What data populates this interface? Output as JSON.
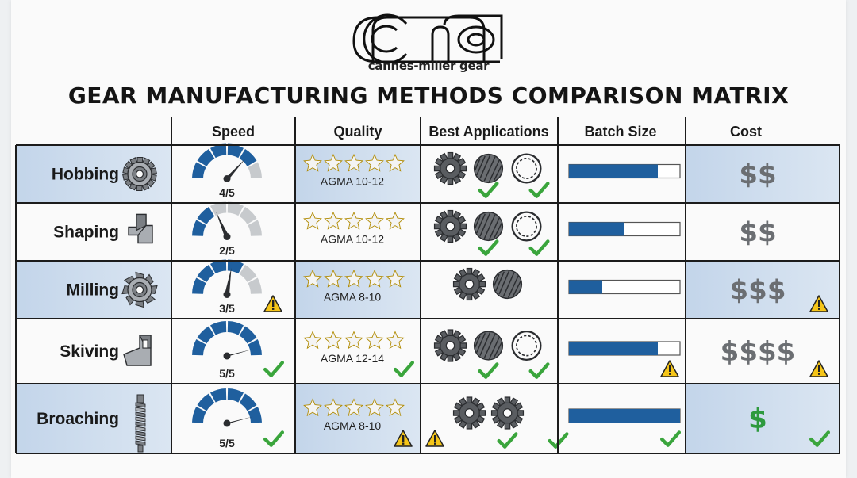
{
  "brand": {
    "logo_text": "cmg",
    "name": "cannes-miller gear"
  },
  "title": "GEAR MANUFACTURING METHODS COMPARISON MATRIX",
  "columns": [
    "Speed",
    "Quality",
    "Best Applications",
    "Batch Size",
    "Cost"
  ],
  "colors": {
    "highlight": "#c9d9ec",
    "accent": "#1f5f9e",
    "gauge_off": "#c7cacd",
    "star": "#f2b705",
    "check": "#3aa53c",
    "warning": "#f5c518",
    "cost": "#6b6e72",
    "cost_best": "#2e9a3e"
  },
  "rows": [
    {
      "method": "Hobbing",
      "tool_icon": "hob-cutter-icon",
      "highlight": true,
      "speed": {
        "value": 4,
        "max": 5,
        "label": "4/5",
        "status": "none"
      },
      "quality": {
        "stars": 4,
        "label": "AGMA 10-12",
        "status": "none"
      },
      "applications": {
        "gears": [
          "spur-gear-icon",
          "helical-gear-icon",
          "internal-gear-icon"
        ],
        "checks": 2,
        "status": "none"
      },
      "batch": {
        "fill_fraction": 0.8,
        "status": "none"
      },
      "cost": {
        "label": "$$",
        "status": "none",
        "color": "cost"
      }
    },
    {
      "method": "Shaping",
      "tool_icon": "shaper-cutter-icon",
      "highlight": false,
      "speed": {
        "value": 2,
        "max": 5,
        "label": "2/5",
        "status": "none"
      },
      "quality": {
        "stars": 4.5,
        "label": "AGMA 10-12",
        "status": "none"
      },
      "applications": {
        "gears": [
          "spur-gear-icon",
          "helical-gear-icon",
          "internal-gear-icon"
        ],
        "checks": 2,
        "status": "none"
      },
      "batch": {
        "fill_fraction": 0.5,
        "status": "none"
      },
      "cost": {
        "label": "$$",
        "status": "none",
        "color": "cost"
      }
    },
    {
      "method": "Milling",
      "tool_icon": "milling-cutter-icon",
      "highlight": true,
      "speed": {
        "value": 3,
        "max": 5,
        "label": "3/5",
        "status": "warning"
      },
      "quality": {
        "stars": 3.5,
        "label": "AGMA 8-10",
        "status": "none"
      },
      "applications": {
        "gears": [
          "spur-gear-icon",
          "helical-gear-icon"
        ],
        "checks": 0,
        "status": "none"
      },
      "batch": {
        "fill_fraction": 0.3,
        "status": "none"
      },
      "cost": {
        "label": "$$$",
        "status": "warning",
        "color": "cost"
      }
    },
    {
      "method": "Skiving",
      "tool_icon": "skiving-tool-icon",
      "highlight": false,
      "speed": {
        "value": 5,
        "max": 5,
        "label": "5/5",
        "status": "check"
      },
      "quality": {
        "stars": 5,
        "label": "AGMA 12-14",
        "status": "check"
      },
      "applications": {
        "gears": [
          "spur-gear-icon",
          "helical-gear-icon",
          "internal-gear-icon"
        ],
        "checks": 2,
        "status": "none"
      },
      "batch": {
        "fill_fraction": 0.8,
        "status": "warning"
      },
      "cost": {
        "label": "$$$$",
        "status": "warning",
        "color": "cost"
      }
    },
    {
      "method": "Broaching",
      "tool_icon": "broach-tool-icon",
      "highlight": true,
      "speed": {
        "value": 5,
        "max": 5,
        "label": "5/5",
        "status": "check"
      },
      "quality": {
        "stars": 3.5,
        "label": "AGMA 8-10",
        "status": "warning"
      },
      "applications": {
        "gears": [
          "internal-spline-icon",
          "external-gear-icon"
        ],
        "checks": 2,
        "status": "warning"
      },
      "batch": {
        "fill_fraction": 1.0,
        "status": "check"
      },
      "cost": {
        "label": "$",
        "status": "check",
        "color": "cost_best"
      }
    }
  ]
}
